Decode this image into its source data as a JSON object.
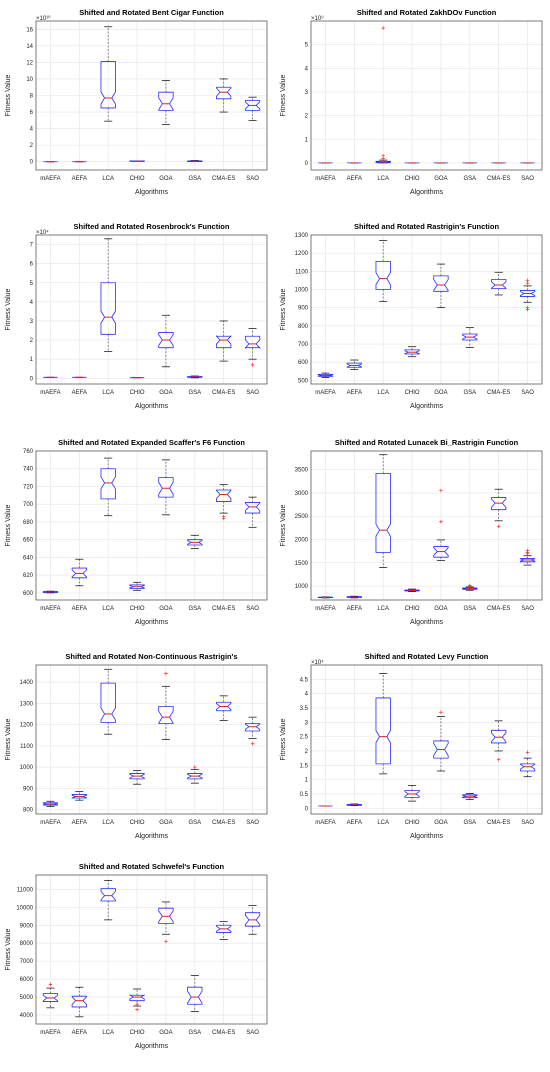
{
  "colors": {
    "box": "#2b2bff",
    "median": "#e0202a",
    "outlier": "#ff2a2a",
    "whisker": "#555555",
    "grid": "#e4e4e4",
    "axis": "#444444"
  },
  "chart_data": [
    {
      "type": "box",
      "title": "Shifted and Rotated Bent Cigar Function",
      "xlabel": "Algorithms",
      "ylabel": "Fitness Value",
      "multiplier": "×10¹⁰",
      "ylim": [
        -1,
        17
      ],
      "yticks": [
        0,
        2,
        4,
        6,
        8,
        10,
        12,
        14,
        16
      ],
      "ytick_labels": [
        "0",
        "2",
        "4",
        "6",
        "8",
        "10",
        "12",
        "14",
        "16"
      ],
      "grid": true,
      "categories": [
        "mAEFA",
        "AEFA",
        "LCA",
        "CHIO",
        "GOA",
        "GSA",
        "CMA-ES",
        "SAO"
      ],
      "boxes": [
        {
          "min": 0,
          "q1": 0,
          "median": 0,
          "q3": 0,
          "max": 0,
          "outliers": []
        },
        {
          "min": 0,
          "q1": 0,
          "median": 0,
          "q3": 0,
          "max": 0,
          "outliers": []
        },
        {
          "min": 4.9,
          "q1": 6.5,
          "median": 7.7,
          "q3": 12.1,
          "max": 16.3,
          "outliers": []
        },
        {
          "min": 0.05,
          "q1": 0.05,
          "median": 0.05,
          "q3": 0.1,
          "max": 0.1,
          "outliers": []
        },
        {
          "min": 4.5,
          "q1": 6.2,
          "median": 7.0,
          "q3": 8.4,
          "max": 9.8,
          "outliers": []
        },
        {
          "min": 0,
          "q1": 0.02,
          "median": 0.05,
          "q3": 0.1,
          "max": 0.15,
          "outliers": []
        },
        {
          "min": 6.0,
          "q1": 7.6,
          "median": 8.4,
          "q3": 9.0,
          "max": 10.0,
          "outliers": []
        },
        {
          "min": 5.0,
          "q1": 6.2,
          "median": 6.8,
          "q3": 7.4,
          "max": 7.8,
          "outliers": []
        }
      ]
    },
    {
      "type": "box",
      "title": "Shifted and Rotated ZakhDOv Function",
      "xlabel": "Algorithms",
      "ylabel": "Fitness Value",
      "multiplier": "×10⁹",
      "ylim": [
        -0.3,
        6
      ],
      "yticks": [
        0,
        1,
        2,
        3,
        4,
        5
      ],
      "ytick_labels": [
        "0",
        "1",
        "2",
        "3",
        "4",
        "5"
      ],
      "grid": true,
      "categories": [
        "mAEFA",
        "AEFA",
        "LCA",
        "CHIO",
        "GOA",
        "GSA",
        "CMA-ES",
        "SAO"
      ],
      "boxes": [
        {
          "min": 0,
          "q1": 0,
          "median": 0,
          "q3": 0,
          "max": 0,
          "outliers": []
        },
        {
          "min": 0,
          "q1": 0,
          "median": 0,
          "q3": 0,
          "max": 0,
          "outliers": []
        },
        {
          "min": 0,
          "q1": 0.01,
          "median": 0.03,
          "q3": 0.07,
          "max": 0.12,
          "outliers": [
            0.18,
            0.3,
            5.7
          ]
        },
        {
          "min": 0,
          "q1": 0,
          "median": 0,
          "q3": 0,
          "max": 0,
          "outliers": []
        },
        {
          "min": 0,
          "q1": 0,
          "median": 0,
          "q3": 0,
          "max": 0,
          "outliers": []
        },
        {
          "min": 0,
          "q1": 0,
          "median": 0,
          "q3": 0,
          "max": 0,
          "outliers": []
        },
        {
          "min": 0,
          "q1": 0,
          "median": 0,
          "q3": 0,
          "max": 0,
          "outliers": []
        },
        {
          "min": 0,
          "q1": 0,
          "median": 0,
          "q3": 0,
          "max": 0,
          "outliers": []
        }
      ]
    },
    {
      "type": "box",
      "title": "Shifted and Rotated Rosenbrock's Function",
      "xlabel": "Algorithms",
      "ylabel": "Fitness Value",
      "multiplier": "×10⁴",
      "ylim": [
        -0.3,
        7.5
      ],
      "yticks": [
        0,
        1,
        2,
        3,
        4,
        5,
        6,
        7
      ],
      "ytick_labels": [
        "0",
        "1",
        "2",
        "3",
        "4",
        "5",
        "6",
        "7"
      ],
      "grid": true,
      "categories": [
        "mAEFA",
        "AEFA",
        "LCA",
        "CHIO",
        "GOA",
        "GSA",
        "CMA-ES",
        "SAO"
      ],
      "boxes": [
        {
          "min": 0.05,
          "q1": 0.05,
          "median": 0.05,
          "q3": 0.05,
          "max": 0.05,
          "outliers": []
        },
        {
          "min": 0.05,
          "q1": 0.05,
          "median": 0.05,
          "q3": 0.05,
          "max": 0.05,
          "outliers": []
        },
        {
          "min": 1.4,
          "q1": 2.3,
          "median": 3.2,
          "q3": 5.0,
          "max": 7.3,
          "outliers": []
        },
        {
          "min": 0.03,
          "q1": 0.03,
          "median": 0.03,
          "q3": 0.03,
          "max": 0.03,
          "outliers": []
        },
        {
          "min": 0.6,
          "q1": 1.6,
          "median": 2.0,
          "q3": 2.4,
          "max": 3.3,
          "outliers": []
        },
        {
          "min": 0.02,
          "q1": 0.05,
          "median": 0.07,
          "q3": 0.09,
          "max": 0.12,
          "outliers": []
        },
        {
          "min": 0.9,
          "q1": 1.6,
          "median": 2.0,
          "q3": 2.2,
          "max": 3.0,
          "outliers": []
        },
        {
          "min": 1.0,
          "q1": 1.6,
          "median": 1.8,
          "q3": 2.2,
          "max": 2.6,
          "outliers": [
            0.7
          ]
        }
      ]
    },
    {
      "type": "box",
      "title": "Shifted and Rotated Rastrigin's Function",
      "xlabel": "Algorithms",
      "ylabel": "Fitness Value",
      "multiplier": "",
      "ylim": [
        480,
        1300
      ],
      "yticks": [
        500,
        600,
        700,
        800,
        900,
        1000,
        1100,
        1200,
        1300
      ],
      "ytick_labels": [
        "500",
        "600",
        "700",
        "800",
        "900",
        "1000",
        "1100",
        "1200",
        "1300"
      ],
      "grid": true,
      "categories": [
        "mAEFA",
        "AEFA",
        "LCA",
        "CHIO",
        "GOA",
        "GSA",
        "CMA-ES",
        "SAO"
      ],
      "boxes": [
        {
          "min": 515,
          "q1": 522,
          "median": 527,
          "q3": 533,
          "max": 540,
          "outliers": []
        },
        {
          "min": 560,
          "q1": 572,
          "median": 582,
          "q3": 595,
          "max": 612,
          "outliers": []
        },
        {
          "min": 935,
          "q1": 1000,
          "median": 1060,
          "q3": 1155,
          "max": 1270,
          "outliers": []
        },
        {
          "min": 630,
          "q1": 645,
          "median": 655,
          "q3": 668,
          "max": 685,
          "outliers": []
        },
        {
          "min": 900,
          "q1": 990,
          "median": 1025,
          "q3": 1075,
          "max": 1140,
          "outliers": []
        },
        {
          "min": 680,
          "q1": 722,
          "median": 738,
          "q3": 755,
          "max": 790,
          "outliers": []
        },
        {
          "min": 970,
          "q1": 1005,
          "median": 1025,
          "q3": 1055,
          "max": 1095,
          "outliers": []
        },
        {
          "min": 930,
          "q1": 962,
          "median": 978,
          "q3": 995,
          "max": 1020,
          "outliers": [
            890,
            900,
            1035,
            1050
          ]
        }
      ]
    },
    {
      "type": "box",
      "title": "Shifted and Rotated Expanded Scaffer's F6 Function",
      "xlabel": "Algorithms",
      "ylabel": "Fitness Value",
      "multiplier": "",
      "ylim": [
        592,
        760
      ],
      "yticks": [
        600,
        620,
        640,
        660,
        680,
        700,
        720,
        740,
        760
      ],
      "ytick_labels": [
        "600",
        "620",
        "640",
        "660",
        "680",
        "700",
        "720",
        "740",
        "760"
      ],
      "grid": true,
      "categories": [
        "mAEFA",
        "AEFA",
        "LCA",
        "CHIO",
        "GOA",
        "GSA",
        "CMA-ES",
        "SAO"
      ],
      "boxes": [
        {
          "min": 600,
          "q1": 600.5,
          "median": 601,
          "q3": 601.5,
          "max": 602,
          "outliers": []
        },
        {
          "min": 608,
          "q1": 617,
          "median": 622,
          "q3": 628,
          "max": 638,
          "outliers": []
        },
        {
          "min": 687,
          "q1": 706,
          "median": 724,
          "q3": 740,
          "max": 752,
          "outliers": []
        },
        {
          "min": 603,
          "q1": 605,
          "median": 607,
          "q3": 609,
          "max": 612,
          "outliers": []
        },
        {
          "min": 688,
          "q1": 708,
          "median": 718,
          "q3": 730,
          "max": 750,
          "outliers": []
        },
        {
          "min": 650,
          "q1": 654,
          "median": 657,
          "q3": 660,
          "max": 665,
          "outliers": []
        },
        {
          "min": 690,
          "q1": 703,
          "median": 711,
          "q3": 716,
          "max": 722,
          "outliers": [
            684,
            686
          ]
        },
        {
          "min": 674,
          "q1": 690,
          "median": 697,
          "q3": 702,
          "max": 708,
          "outliers": []
        }
      ]
    },
    {
      "type": "box",
      "title": "Shifted and Rotated Lunacek Bi_Rastrigin Function",
      "xlabel": "Algorithms",
      "ylabel": "Fitness Value",
      "multiplier": "",
      "ylim": [
        700,
        3900
      ],
      "yticks": [
        1000,
        1500,
        2000,
        2500,
        3000,
        3500
      ],
      "ytick_labels": [
        "1000",
        "1500",
        "2000",
        "2500",
        "3000",
        "3500"
      ],
      "grid": true,
      "categories": [
        "mAEFA",
        "AEFA",
        "LCA",
        "CHIO",
        "GOA",
        "GSA",
        "CMA-ES",
        "SAO"
      ],
      "boxes": [
        {
          "min": 745,
          "q1": 752,
          "median": 757,
          "q3": 762,
          "max": 768,
          "outliers": []
        },
        {
          "min": 745,
          "q1": 755,
          "median": 762,
          "q3": 772,
          "max": 782,
          "outliers": []
        },
        {
          "min": 1400,
          "q1": 1720,
          "median": 2200,
          "q3": 3420,
          "max": 3820,
          "outliers": []
        },
        {
          "min": 880,
          "q1": 895,
          "median": 905,
          "q3": 915,
          "max": 935,
          "outliers": []
        },
        {
          "min": 1550,
          "q1": 1620,
          "median": 1740,
          "q3": 1850,
          "max": 1990,
          "outliers": [
            2380,
            3050
          ]
        },
        {
          "min": 910,
          "q1": 930,
          "median": 945,
          "q3": 960,
          "max": 980,
          "outliers": [
            1000,
            1010
          ]
        },
        {
          "min": 2400,
          "q1": 2640,
          "median": 2780,
          "q3": 2900,
          "max": 3080,
          "outliers": [
            2280
          ]
        },
        {
          "min": 1450,
          "q1": 1520,
          "median": 1560,
          "q3": 1590,
          "max": 1650,
          "outliers": [
            1690,
            1720,
            1760
          ]
        }
      ]
    },
    {
      "type": "box",
      "title": "Shifted and Rotated Non-Continuous Rastrigin's",
      "xlabel": "Algorithms",
      "ylabel": "Fitness Value",
      "multiplier": "",
      "ylim": [
        780,
        1480
      ],
      "yticks": [
        800,
        900,
        1000,
        1100,
        1200,
        1300,
        1400
      ],
      "ytick_labels": [
        "800",
        "900",
        "1000",
        "1100",
        "1200",
        "1300",
        "1400"
      ],
      "grid": true,
      "categories": [
        "mAEFA",
        "AEFA",
        "LCA",
        "CHIO",
        "GOA",
        "GSA",
        "CMA-ES",
        "SAO"
      ],
      "boxes": [
        {
          "min": 815,
          "q1": 822,
          "median": 827,
          "q3": 833,
          "max": 840,
          "outliers": []
        },
        {
          "min": 845,
          "q1": 855,
          "median": 862,
          "q3": 872,
          "max": 885,
          "outliers": []
        },
        {
          "min": 1155,
          "q1": 1210,
          "median": 1250,
          "q3": 1395,
          "max": 1460,
          "outliers": []
        },
        {
          "min": 920,
          "q1": 945,
          "median": 958,
          "q3": 970,
          "max": 985,
          "outliers": []
        },
        {
          "min": 1130,
          "q1": 1205,
          "median": 1235,
          "q3": 1285,
          "max": 1380,
          "outliers": [
            1440
          ]
        },
        {
          "min": 925,
          "q1": 945,
          "median": 958,
          "q3": 970,
          "max": 990,
          "outliers": [
            1000
          ]
        },
        {
          "min": 1220,
          "q1": 1265,
          "median": 1285,
          "q3": 1305,
          "max": 1335,
          "outliers": []
        },
        {
          "min": 1135,
          "q1": 1170,
          "median": 1190,
          "q3": 1205,
          "max": 1235,
          "outliers": [
            1110
          ]
        }
      ]
    },
    {
      "type": "box",
      "title": "Shifted and Rotated Levy Function",
      "xlabel": "Algorithms",
      "ylabel": "Fitness Value",
      "multiplier": "×10⁴",
      "ylim": [
        -0.2,
        5
      ],
      "yticks": [
        0,
        0.5,
        1,
        1.5,
        2,
        2.5,
        3,
        3.5,
        4,
        4.5
      ],
      "ytick_labels": [
        "0",
        "0.5",
        "1",
        "1.5",
        "2",
        "2.5",
        "3",
        "3.5",
        "4",
        "4.5"
      ],
      "grid": true,
      "categories": [
        "mAEFA",
        "AEFA",
        "LCA",
        "CHIO",
        "GOA",
        "GSA",
        "CMA-ES",
        "SAO"
      ],
      "boxes": [
        {
          "min": 0.08,
          "q1": 0.08,
          "median": 0.08,
          "q3": 0.08,
          "max": 0.08,
          "outliers": []
        },
        {
          "min": 0.09,
          "q1": 0.1,
          "median": 0.12,
          "q3": 0.13,
          "max": 0.15,
          "outliers": []
        },
        {
          "min": 1.2,
          "q1": 1.55,
          "median": 2.5,
          "q3": 3.85,
          "max": 4.7,
          "outliers": []
        },
        {
          "min": 0.25,
          "q1": 0.38,
          "median": 0.5,
          "q3": 0.62,
          "max": 0.8,
          "outliers": []
        },
        {
          "min": 1.3,
          "q1": 1.75,
          "median": 2.05,
          "q3": 2.35,
          "max": 3.2,
          "outliers": [
            3.35
          ]
        },
        {
          "min": 0.3,
          "q1": 0.37,
          "median": 0.42,
          "q3": 0.47,
          "max": 0.52,
          "outliers": []
        },
        {
          "min": 2.0,
          "q1": 2.28,
          "median": 2.48,
          "q3": 2.72,
          "max": 3.05,
          "outliers": [
            1.7
          ]
        },
        {
          "min": 1.1,
          "q1": 1.3,
          "median": 1.45,
          "q3": 1.55,
          "max": 1.75,
          "outliers": [
            1.95
          ]
        }
      ]
    },
    {
      "type": "box",
      "title": "Shifted and Rotated Schwefel's Function",
      "xlabel": "Algorithms",
      "ylabel": "Fitness Value",
      "multiplier": "",
      "ylim": [
        3500,
        11800
      ],
      "yticks": [
        4000,
        5000,
        6000,
        7000,
        8000,
        9000,
        10000,
        11000
      ],
      "ytick_labels": [
        "4000",
        "5000",
        "6000",
        "7000",
        "8000",
        "9000",
        "10000",
        "11000"
      ],
      "grid": true,
      "categories": [
        "mAEFA",
        "AEFA",
        "LCA",
        "CHIO",
        "GOA",
        "GSA",
        "CMA-ES",
        "SAO"
      ],
      "boxes": [
        {
          "min": 4400,
          "q1": 4750,
          "median": 4950,
          "q3": 5200,
          "max": 5500,
          "outliers": [
            5700
          ]
        },
        {
          "min": 3900,
          "q1": 4450,
          "median": 4800,
          "q3": 5050,
          "max": 5550,
          "outliers": []
        },
        {
          "min": 9300,
          "q1": 10350,
          "median": 10650,
          "q3": 11050,
          "max": 11500,
          "outliers": []
        },
        {
          "min": 4500,
          "q1": 4800,
          "median": 5000,
          "q3": 5100,
          "max": 5450,
          "outliers": [
            4300,
            4600
          ]
        },
        {
          "min": 8500,
          "q1": 9100,
          "median": 9500,
          "q3": 9950,
          "max": 10300,
          "outliers": [
            8100
          ]
        },
        {
          "min": 4200,
          "q1": 4600,
          "median": 5000,
          "q3": 5550,
          "max": 6200,
          "outliers": []
        },
        {
          "min": 8200,
          "q1": 8600,
          "median": 8800,
          "q3": 9000,
          "max": 9200,
          "outliers": []
        },
        {
          "min": 8500,
          "q1": 8950,
          "median": 9300,
          "q3": 9700,
          "max": 10100,
          "outliers": []
        }
      ]
    }
  ]
}
